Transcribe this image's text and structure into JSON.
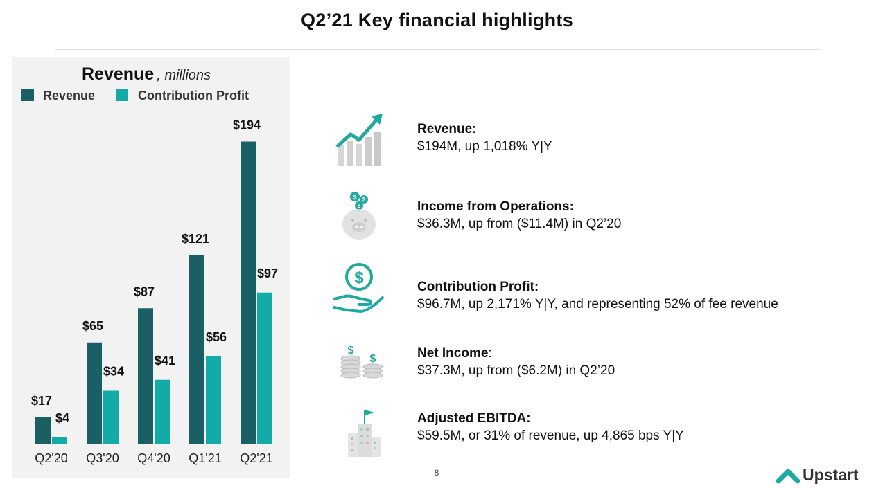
{
  "slide": {
    "title": "Q2’21 Key financial highlights",
    "page_number": "8",
    "brand": "Upstart"
  },
  "chart_data": {
    "type": "bar",
    "title": "Revenue",
    "subtitle": "millions",
    "categories": [
      "Q2'20",
      "Q3'20",
      "Q4'20",
      "Q1'21",
      "Q2'21"
    ],
    "series": [
      {
        "name": "Revenue",
        "values": [
          17,
          65,
          87,
          121,
          194
        ],
        "labels": [
          "$17",
          "$65",
          "$87",
          "$121",
          "$194"
        ],
        "color": "#1a5f63"
      },
      {
        "name": "Contribution Profit",
        "values": [
          4,
          34,
          41,
          56,
          97
        ],
        "labels": [
          "$4",
          "$34",
          "$41",
          "$56",
          "$97"
        ],
        "color": "#12aba8"
      }
    ],
    "ylim": [
      0,
      200
    ],
    "grid": false,
    "legend": "top-left"
  },
  "highlights": [
    {
      "label": "Revenue:",
      "detail": "$194M, up 1,018% Y|Y",
      "icon": "growth-chart-icon"
    },
    {
      "label": "Income from Operations:",
      "detail": "$36.3M, up from ($11.4M) in Q2’20",
      "icon": "piggy-bank-icon"
    },
    {
      "label": "Contribution Profit:",
      "detail": "$96.7M, up 2,171% Y|Y, and representing 52% of fee revenue",
      "icon": "hand-dollar-icon"
    },
    {
      "label": "Net Income",
      "sep": ":",
      "detail": "$37.3M, up from ($6.2M) in Q2’20",
      "icon": "coin-stacks-icon"
    },
    {
      "label": "Adjusted EBITDA:",
      "detail": "$59.5M, or 31% of revenue, up 4,865 bps Y|Y",
      "icon": "building-flag-icon"
    }
  ],
  "colors": {
    "revenue": "#1a5f63",
    "contribution_profit": "#12aba8",
    "accent": "#1fa9a0",
    "icon_gray": "#cfcfcf"
  }
}
